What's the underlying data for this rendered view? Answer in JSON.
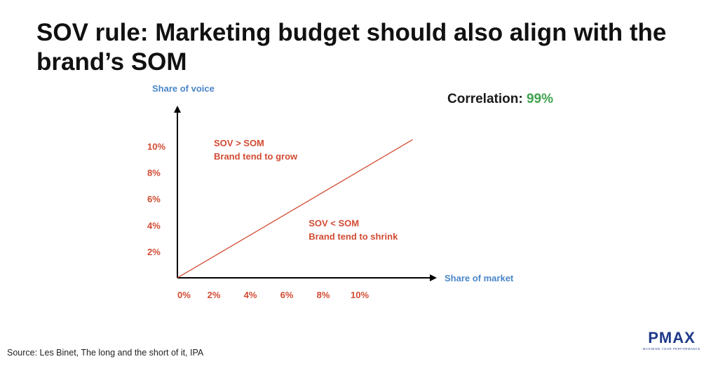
{
  "title": "SOV rule: Marketing budget should also align with the brand’s SOM",
  "correlation": {
    "label": "Correlation:",
    "value": "99%"
  },
  "source": "Source: Les Binet, The long and the short of it, IPA",
  "logo": {
    "text": "PMAX",
    "tagline": "MAXIMIZE YOUR PERFORMANCE"
  },
  "colors": {
    "accent": "#d24b33",
    "axis_label": "#4a86c8",
    "positive": "#3fa34d",
    "logo": "#1f3a8a"
  },
  "chart_data": {
    "type": "line",
    "xlabel": "Share of market",
    "ylabel": "Share of voice",
    "x_ticks": [
      "0%",
      "2%",
      "4%",
      "6%",
      "8%",
      "10%"
    ],
    "y_ticks": [
      "2%",
      "4%",
      "6%",
      "8%",
      "10%"
    ],
    "xlim": [
      0,
      13
    ],
    "ylim": [
      0,
      12
    ],
    "series": [
      {
        "x": [
          0,
          12.9
        ],
        "y": [
          0,
          10.5
        ]
      }
    ],
    "annotations": [
      {
        "lines": [
          "SOV > SOM",
          "Brand tend to grow"
        ],
        "x": 2.0,
        "y": 10.0
      },
      {
        "lines": [
          "SOV < SOM",
          "Brand tend to shrink"
        ],
        "x": 7.2,
        "y": 3.9
      }
    ],
    "grid": false,
    "legend": "none"
  }
}
